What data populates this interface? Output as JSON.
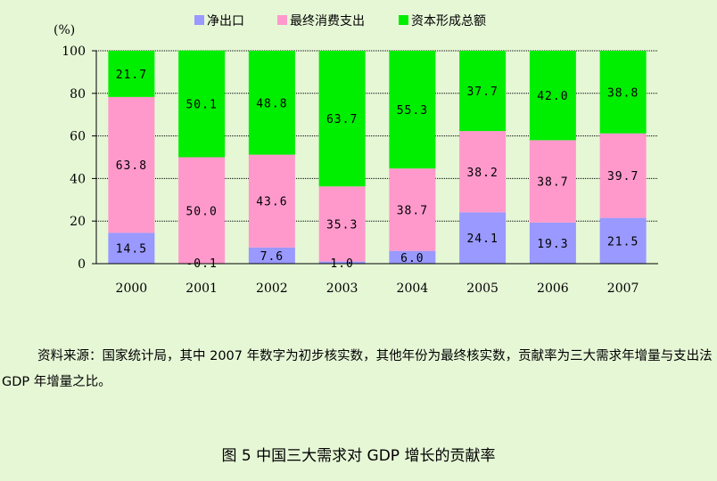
{
  "chart_data": {
    "type": "bar",
    "stacked": true,
    "ylabel": "(%)",
    "ylim": [
      0,
      100
    ],
    "yticks": [
      0,
      20,
      40,
      60,
      80,
      100
    ],
    "grid": true,
    "legend_position": "top",
    "categories": [
      "2000",
      "2001",
      "2002",
      "2003",
      "2004",
      "2005",
      "2006",
      "2007"
    ],
    "series": [
      {
        "name": "净出口",
        "color": "#9999ff",
        "values": [
          14.5,
          -0.1,
          7.6,
          1.0,
          6.0,
          24.1,
          19.3,
          21.5
        ],
        "labels": [
          "14.5",
          "-0.1",
          "7.6",
          "1.0",
          "6.0",
          "24.1",
          "19.3",
          "21.5"
        ]
      },
      {
        "name": "最终消费支出",
        "color": "#ff99cc",
        "values": [
          63.8,
          50.0,
          43.6,
          35.3,
          38.7,
          38.2,
          38.7,
          39.7
        ],
        "labels": [
          "63.8",
          "50.0",
          "43.6",
          "35.3",
          "38.7",
          "38.2",
          "38.7",
          "39.7"
        ]
      },
      {
        "name": "资本形成总额",
        "color": "#00ee00",
        "values": [
          21.7,
          50.1,
          48.8,
          63.7,
          55.3,
          37.7,
          42.0,
          38.8
        ],
        "labels": [
          "21.7",
          "50.1",
          "48.8",
          "63.7",
          "55.3",
          "37.7",
          "42.0",
          "38.8"
        ]
      }
    ]
  },
  "source_note": "资料来源：国家统计局，其中 2007 年数字为初步核实数，其他年份为最终核实数，贡献率为三大需求年增量与支出法 GDP 年增量之比。",
  "caption": "图 5 中国三大需求对 GDP 增长的贡献率"
}
